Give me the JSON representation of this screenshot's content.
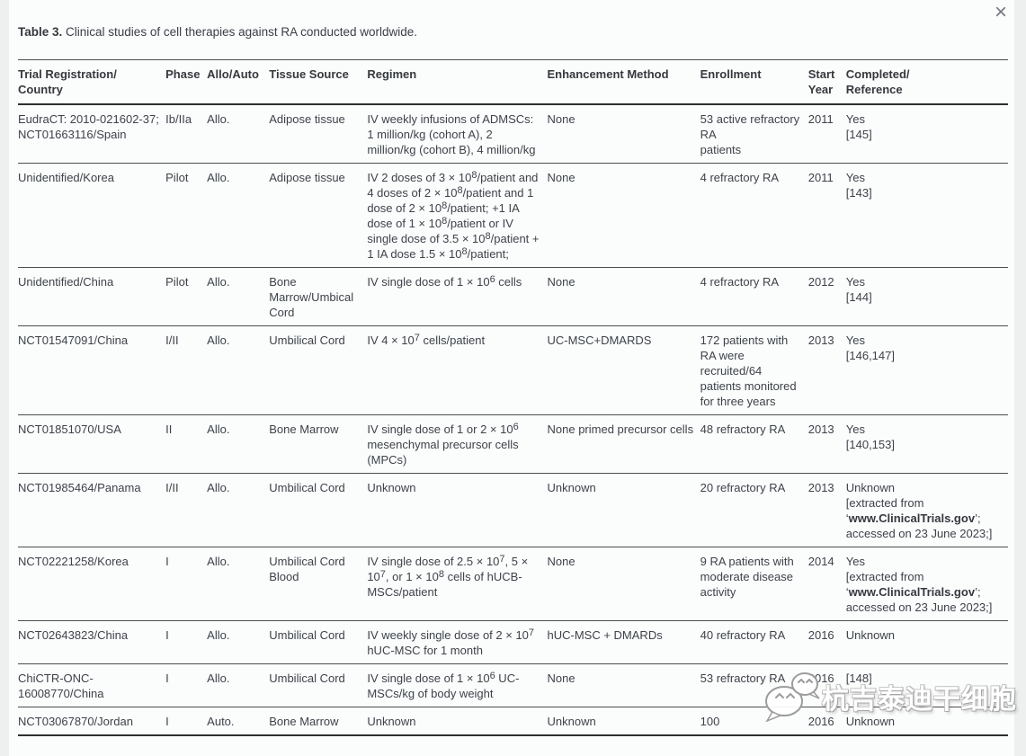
{
  "page": {
    "close_icon": "×"
  },
  "caption": {
    "label": "Table 3.",
    "text": " Clinical studies of cell therapies against RA conducted worldwide."
  },
  "table": {
    "columns": [
      "Trial Registration/\nCountry",
      "Phase",
      "Allo/Auto",
      "Tissue Source",
      "Regimen",
      "Enhancement Method",
      "Enrollment",
      "Start\nYear",
      "Completed/\nReference"
    ],
    "rows": [
      {
        "trial": "EudraCT: 2010-021602-37; NCT01663116/Spain",
        "phase": "Ib/IIa",
        "allo_auto": "Allo.",
        "tissue": "Adipose tissue",
        "regimen": "IV weekly infusions of ADMSCs: 1 million/kg (cohort A), 2 million/kg (cohort B), 4 million/kg",
        "enhancement": "None",
        "enrollment": "53 active refractory\nRA\npatients",
        "start_year": "2011",
        "completed": "Yes\n[145]"
      },
      {
        "trial": "Unidentified/Korea",
        "phase": "Pilot",
        "allo_auto": "Allo.",
        "tissue": "Adipose tissue",
        "regimen": "IV 2 doses of 3 × 10^8/patient and 4 doses of 2 × 10^8/patient and 1 dose of 2 × 10^8/patient; +1 IA dose of 1 × 10^8/patient or IV single dose of 3.5 × 10^8/patient + 1 IA dose 1.5 × 10^8/patient;",
        "enhancement": "None",
        "enrollment": "4 refractory RA",
        "start_year": "2011",
        "completed": "Yes\n[143]"
      },
      {
        "trial": "Unidentified/China",
        "phase": "Pilot",
        "allo_auto": "Allo.",
        "tissue": "Bone Marrow/Umbical Cord",
        "regimen": "IV single dose of 1 × 10^6 cells",
        "enhancement": "None",
        "enrollment": "4 refractory RA",
        "start_year": "2012",
        "completed": "Yes\n[144]"
      },
      {
        "trial": "NCT01547091/China",
        "phase": "I/II",
        "allo_auto": "Allo.",
        "tissue": "Umbilical Cord",
        "regimen": "IV 4 × 10^7 cells/patient",
        "enhancement": "UC-MSC+DMARDS",
        "enrollment": "172 patients with\nRA were\nrecruited/64\npatients monitored\nfor three years",
        "start_year": "2013",
        "completed": "Yes\n[146,147]"
      },
      {
        "trial": "NCT01851070/USA",
        "phase": "II",
        "allo_auto": "Allo.",
        "tissue": "Bone Marrow",
        "regimen": "IV single dose of 1 or 2 × 10^6 mesenchymal precursor cells (MPCs)",
        "enhancement": "None primed precursor cells",
        "enrollment": "48 refractory RA",
        "start_year": "2013",
        "completed": "Yes\n[140,153]"
      },
      {
        "trial": "NCT01985464/Panama",
        "phase": "I/II",
        "allo_auto": "Allo.",
        "tissue": "Umbilical Cord",
        "regimen": "Unknown",
        "enhancement": "Unknown",
        "enrollment": "20 refractory RA",
        "start_year": "2013",
        "completed": "Unknown\n[extracted from\n‘**www.ClinicalTrials.gov**’;\naccessed on 23 June 2023;]"
      },
      {
        "trial": "NCT02221258/Korea",
        "phase": "I",
        "allo_auto": "Allo.",
        "tissue": "Umbilical Cord Blood",
        "regimen": "IV single dose of 2.5 × 10^7, 5 × 10^7, or 1 × 10^8 cells of hUCB-MSCs/patient",
        "enhancement": "None",
        "enrollment": "9 RA patients with\nmoderate disease\nactivity",
        "start_year": "2014",
        "completed": "Yes\n[extracted from\n‘**www.ClinicalTrials.gov**’;\naccessed on 23 June 2023;]"
      },
      {
        "trial": "NCT02643823/China",
        "phase": "I",
        "allo_auto": "Allo.",
        "tissue": "Umbilical Cord",
        "regimen": "IV weekly single dose of 2 × 10^7 hUC-MSC for 1 month",
        "enhancement": "hUC-MSC + DMARDs",
        "enrollment": "40 refractory RA",
        "start_year": "2016",
        "completed": "Unknown"
      },
      {
        "trial": "ChiCTR-ONC-16008770/China",
        "phase": "I",
        "allo_auto": "Allo.",
        "tissue": "Umbilical Cord",
        "regimen": "IV single dose of 1 × 10^6 UC-MSCs/kg of body weight",
        "enhancement": "None",
        "enrollment": "53 refractory RA",
        "start_year": "2016",
        "completed": "[148]"
      },
      {
        "trial": "NCT03067870/Jordan",
        "phase": "I",
        "allo_auto": "Auto.",
        "tissue": "Bone Marrow",
        "regimen": "Unknown",
        "enhancement": "Unknown",
        "enrollment": "100",
        "start_year": "2016",
        "completed": "Unknown"
      }
    ]
  },
  "watermark": {
    "text": "杭吉泰迪干细胞",
    "icon": "wechat-bubbles"
  }
}
